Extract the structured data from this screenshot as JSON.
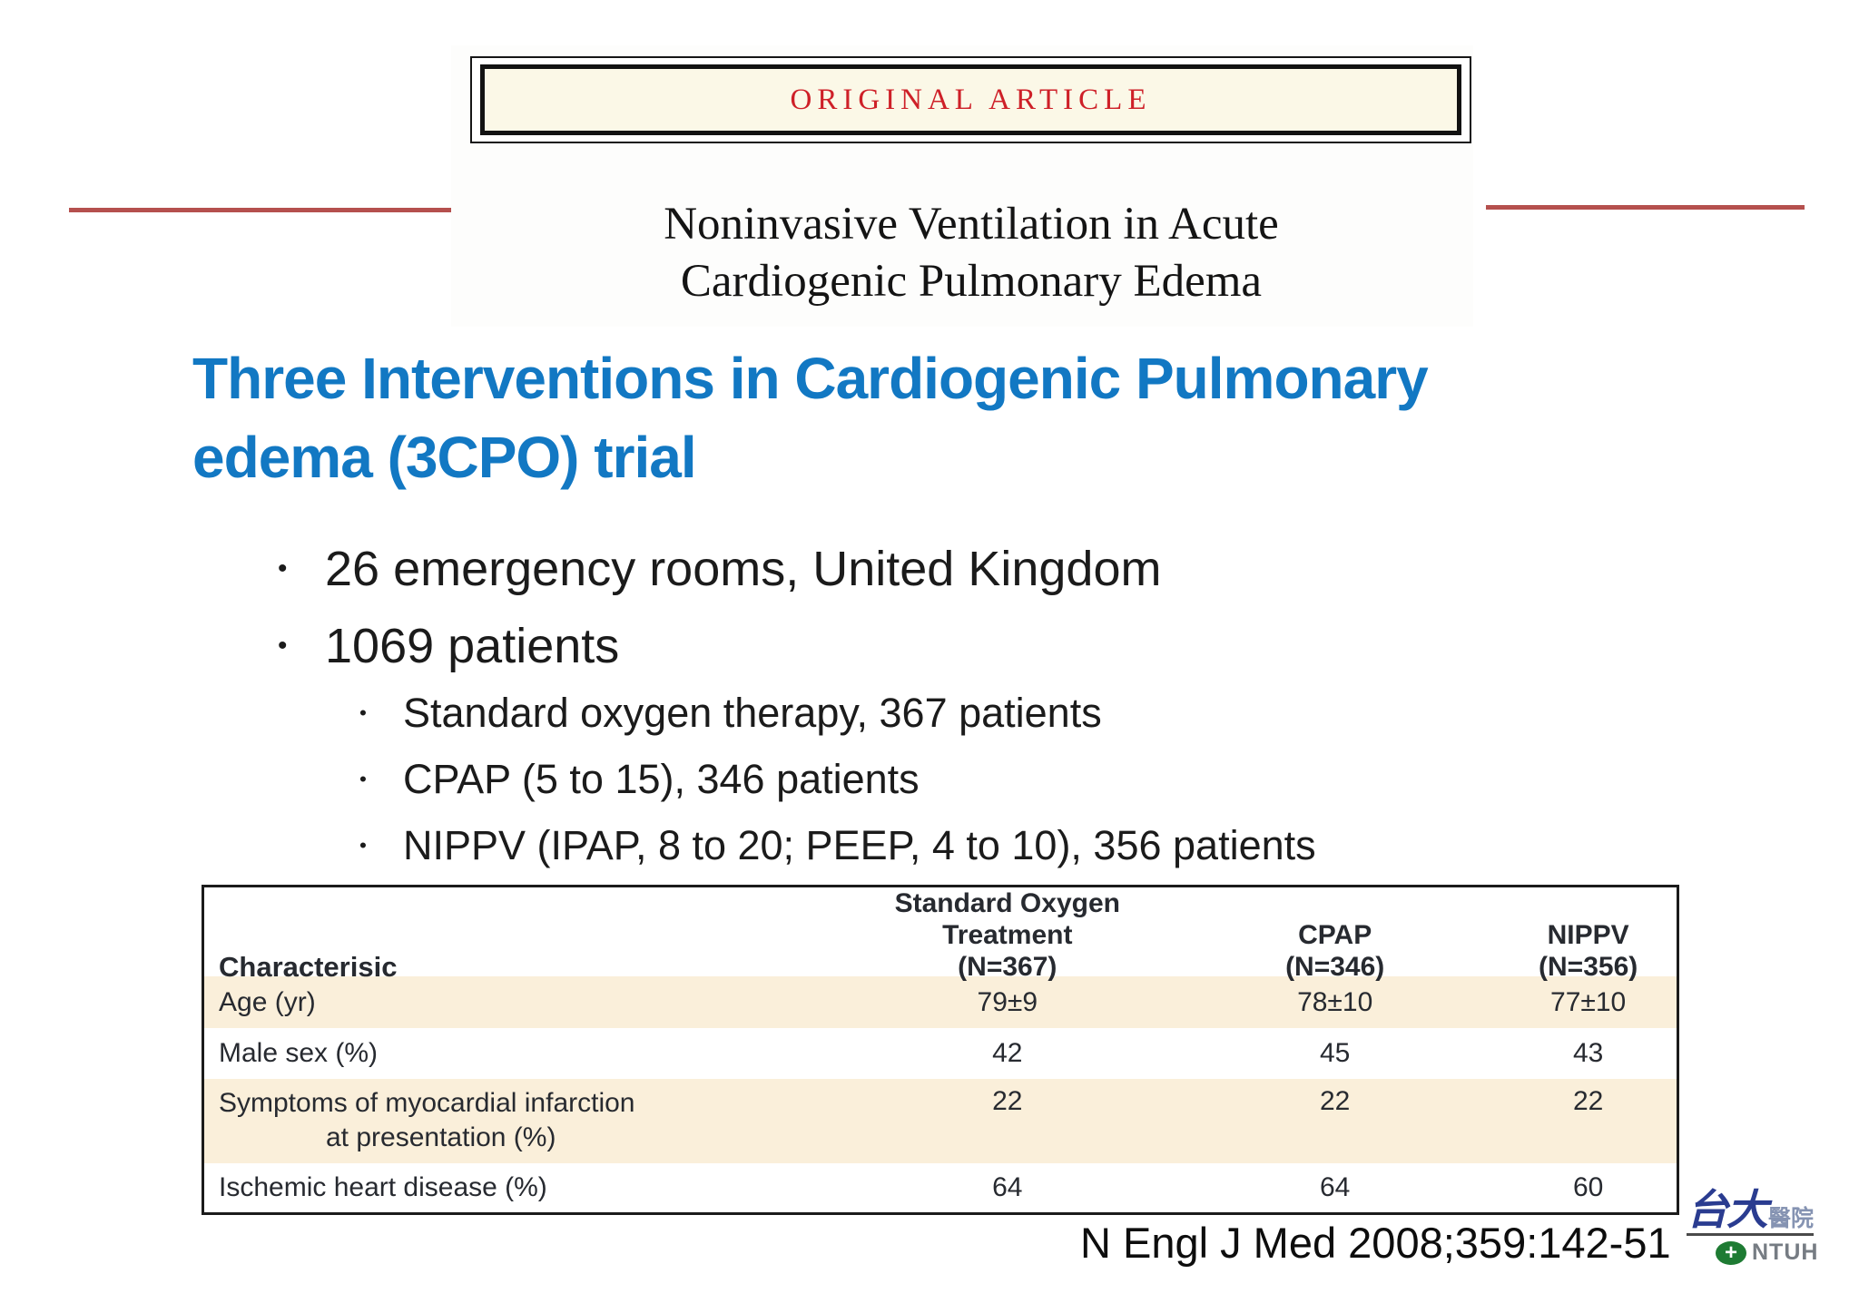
{
  "banner": {
    "label": "ORIGINAL ARTICLE"
  },
  "article": {
    "title_line1": "Noninvasive Ventilation in Acute",
    "title_line2": "Cardiogenic Pulmonary Edema"
  },
  "slide": {
    "title_line1": "Three Interventions in Cardiogenic Pulmonary",
    "title_line2": "edema (3CPO) trial",
    "bullet_glyph": "•",
    "bullets": [
      {
        "label": "26 emergency rooms, United Kingdom"
      },
      {
        "label": "1069 patients"
      }
    ],
    "sub_bullets": [
      {
        "label": "Standard oxygen therapy, 367 patients"
      },
      {
        "label": "CPAP (5 to 15), 346 patients"
      },
      {
        "label": "NIPPV (IPAP, 8 to 20; PEEP, 4 to 10), 356 patients"
      }
    ]
  },
  "table": {
    "header": {
      "col1": "Characterisic",
      "col2_line1": "Standard Oxygen Treatment",
      "col2_line2": "(N=367)",
      "col3_line1": "CPAP",
      "col3_line2": "(N=346)",
      "col4_line1": "NIPPV",
      "col4_line2": "(N=356)"
    },
    "rows": [
      {
        "label": "Age (yr)",
        "v1": "79±9",
        "v2": "78±10",
        "v3": "77±10"
      },
      {
        "label": "Male sex (%)",
        "v1": "42",
        "v2": "45",
        "v3": "43"
      },
      {
        "label": "Symptoms of myocardial infarction",
        "label2": "at presentation (%)",
        "v1": "22",
        "v2": "22",
        "v3": "22"
      },
      {
        "label": "Ischemic heart disease (%)",
        "v1": "64",
        "v2": "64",
        "v3": "60"
      }
    ]
  },
  "footer": {
    "citation": "N Engl J Med 2008;359:142-51"
  },
  "logo": {
    "cjk_main": "台大",
    "cjk_sub": "醫院",
    "acronym": "NTUH",
    "cross_glyph": "+"
  },
  "colors": {
    "slide_title_blue": "#1278C3",
    "banner_red": "#CE2028",
    "rule_red": "#B5504E",
    "box_cream": "#FBF8E7",
    "table_row_peach": "#FAEFDA",
    "table_text": "#272A30",
    "logo_green": "#1E7B33",
    "logo_navy": "#2A3C90"
  }
}
